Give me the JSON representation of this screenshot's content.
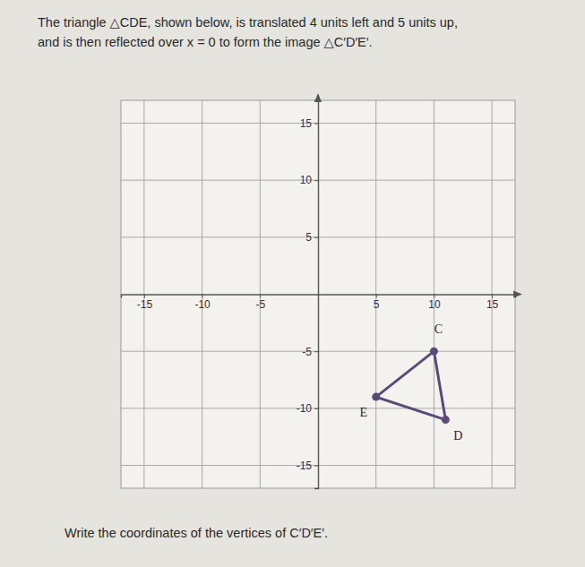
{
  "chart_data": {
    "type": "polygon",
    "title": [
      "The triangle △CDE, shown below, is translated 4 units left and 5 units up,",
      "and is then reflected over x = 0 to form the image △C′D′E′."
    ],
    "annotations": [
      "Write the coordinates of the vertices of C′D′E′."
    ],
    "categories": [
      "C",
      "D",
      "E"
    ],
    "x": [
      10,
      11,
      5
    ],
    "values": [
      -5,
      -11,
      -9
    ],
    "color": "#5b4a78",
    "marker": "circle",
    "line_style": "solid",
    "xlim": [
      -17,
      17
    ],
    "ylim": [
      -17,
      17
    ],
    "xticks": [
      -15,
      -10,
      -5,
      5,
      10,
      15
    ],
    "yticks": [
      -15,
      -10,
      -5,
      5,
      10,
      15
    ],
    "grid": true
  }
}
